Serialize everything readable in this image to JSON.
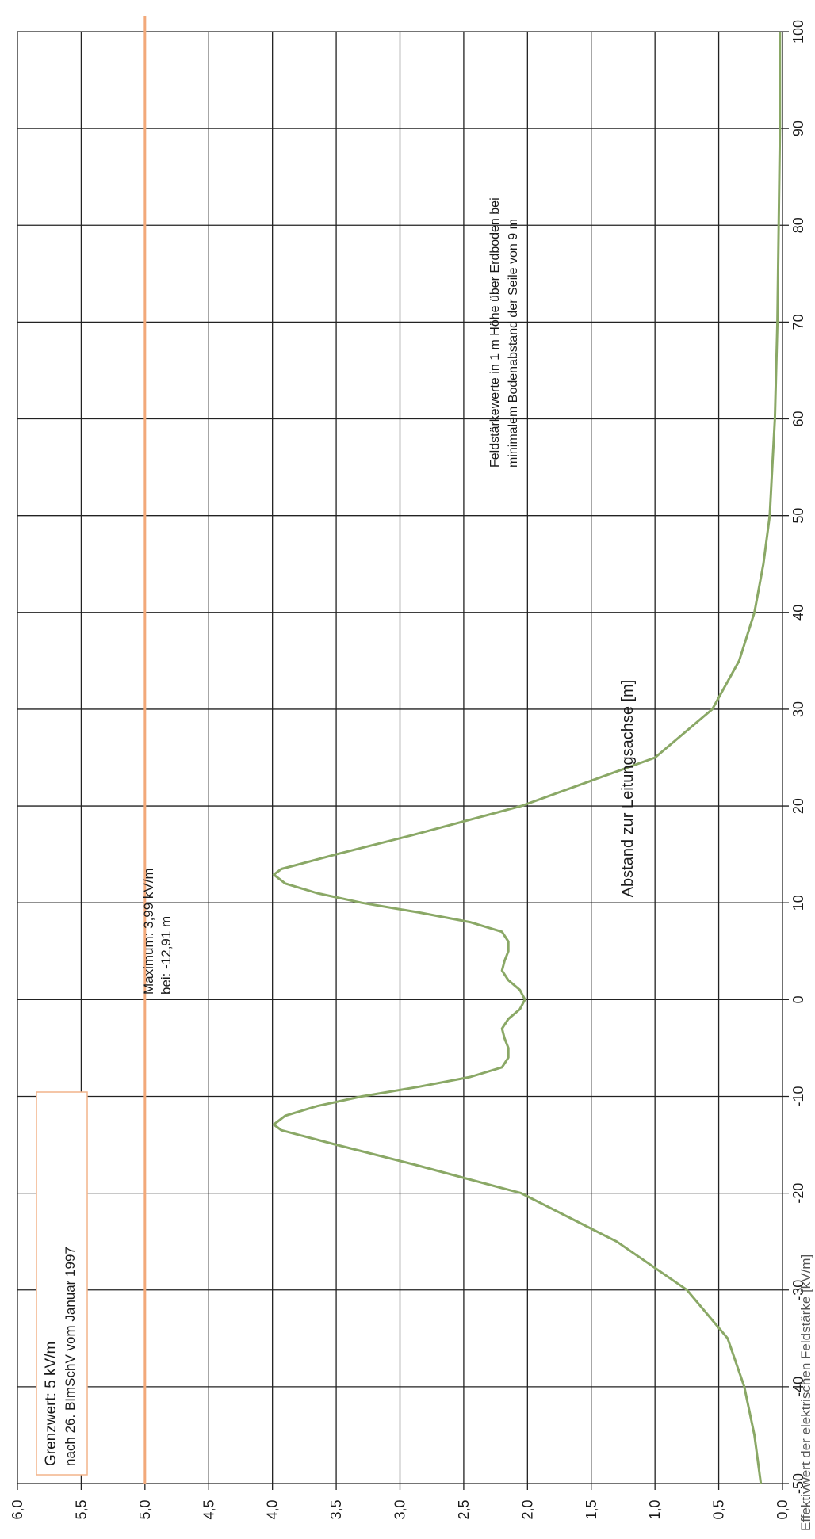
{
  "chart_data": {
    "type": "line",
    "xlabel": "Abstand zur Leitungsachse [m]",
    "ylabel": "Effektivwert der elektrischen Feldstärke [kV/m]",
    "xlim": [
      -50,
      100
    ],
    "ylim": [
      0,
      6
    ],
    "x_ticks": [
      -50,
      -40,
      -30,
      -20,
      -10,
      0,
      10,
      20,
      30,
      40,
      50,
      60,
      70,
      80,
      90,
      100
    ],
    "x_tick_labels": [
      "-50",
      "-40",
      "-30",
      "-20",
      "-10",
      "0",
      "10",
      "20",
      "30",
      "40",
      "50",
      "60",
      "70",
      "80",
      "90",
      "100"
    ],
    "y_ticks": [
      0,
      0.5,
      1,
      1.5,
      2,
      2.5,
      3,
      3.5,
      4,
      4.5,
      5,
      5.5,
      6
    ],
    "y_tick_labels": [
      "0,0",
      "0,5",
      "1,0",
      "1,5",
      "2,0",
      "2,5",
      "3,0",
      "3,5",
      "4,0",
      "4,5",
      "5,0",
      "5,5",
      "6,0"
    ],
    "grid": true,
    "rotation": "chart rotated 90° counterclockwise on page",
    "colors": {
      "series": "#8aa866",
      "limit": "#f2a97a",
      "grid": "#222222"
    },
    "series": [
      {
        "x": [
          -50,
          -45,
          -40,
          -35,
          -30,
          -25,
          -20,
          -17,
          -15,
          -13.5,
          -12.91,
          -12,
          -11,
          -10,
          -9,
          -8,
          -7,
          -6,
          -5,
          -4,
          -3,
          -2,
          -1,
          0,
          1,
          2,
          3,
          4,
          5,
          6,
          7,
          8,
          9,
          10,
          11,
          12,
          12.91,
          13.5,
          15,
          17,
          20,
          25,
          30,
          35,
          40,
          45,
          50,
          55,
          60,
          65,
          70,
          75,
          80,
          85,
          90,
          95,
          100
        ],
        "y": [
          0.17,
          0.22,
          0.3,
          0.43,
          0.75,
          1.3,
          2.05,
          2.9,
          3.5,
          3.93,
          3.99,
          3.9,
          3.65,
          3.3,
          2.85,
          2.45,
          2.2,
          2.15,
          2.15,
          2.18,
          2.2,
          2.15,
          2.06,
          2.02,
          2.06,
          2.15,
          2.2,
          2.18,
          2.15,
          2.15,
          2.2,
          2.45,
          2.85,
          3.3,
          3.65,
          3.9,
          3.99,
          3.93,
          3.5,
          2.9,
          2.05,
          1.0,
          0.55,
          0.34,
          0.22,
          0.15,
          0.1,
          0.08,
          0.06,
          0.05,
          0.04,
          0.035,
          0.03,
          0.025,
          0.02,
          0.02,
          0.02
        ]
      }
    ],
    "limit_line": {
      "y": 5.0
    },
    "annotations": {
      "limit_line1": "Grenzwert: 5 kV/m",
      "limit_line2": "nach 26. BImSchV vom Januar 1997",
      "max_line1": "Maximum: 3,99 kV/m",
      "max_line2": "bei: -12,91 m",
      "field_line1": "Feldstärkewerte in 1 m Höhe über Erdboden bei",
      "field_line2": "minimalem Bodenabstand der Seile von 9 m"
    }
  }
}
